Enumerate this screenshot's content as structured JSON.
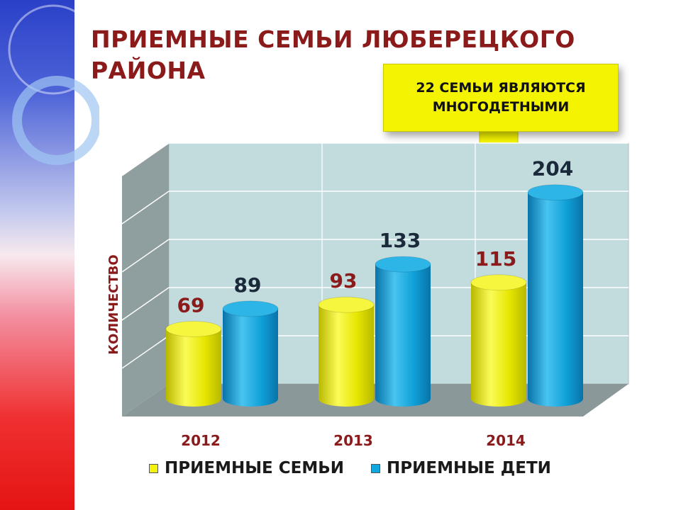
{
  "slide": {
    "title_line1": "ПРИЕМНЫЕ СЕМЬИ ЛЮБЕРЕЦКОГО",
    "title_line2": "РАЙОНА",
    "callout_text": "22 СЕМЬИ ЯВЛЯЮТСЯ\nМНОГОДЕТНЫМИ",
    "colors": {
      "title": "#8b1a1a",
      "callout_bg": "#f4f400"
    }
  },
  "chart_data": {
    "type": "bar",
    "title": "",
    "xlabel": "",
    "ylabel": "КОЛИЧЕСТВО",
    "categories": [
      "2012",
      "2013",
      "2014"
    ],
    "series": [
      {
        "name": "ПРИЕМНЫЕ СЕМЬИ",
        "values": [
          69,
          93,
          115
        ],
        "color": "#f2f20a",
        "label_color": "#8b1a1a"
      },
      {
        "name": "ПРИЕМНЫЕ ДЕТИ",
        "values": [
          89,
          133,
          204
        ],
        "color": "#11a8e0",
        "label_color": "#1a2a3a"
      }
    ],
    "ylim": [
      0,
      250
    ],
    "grid": true,
    "legend_position": "bottom",
    "style": "3d-cylinder"
  }
}
